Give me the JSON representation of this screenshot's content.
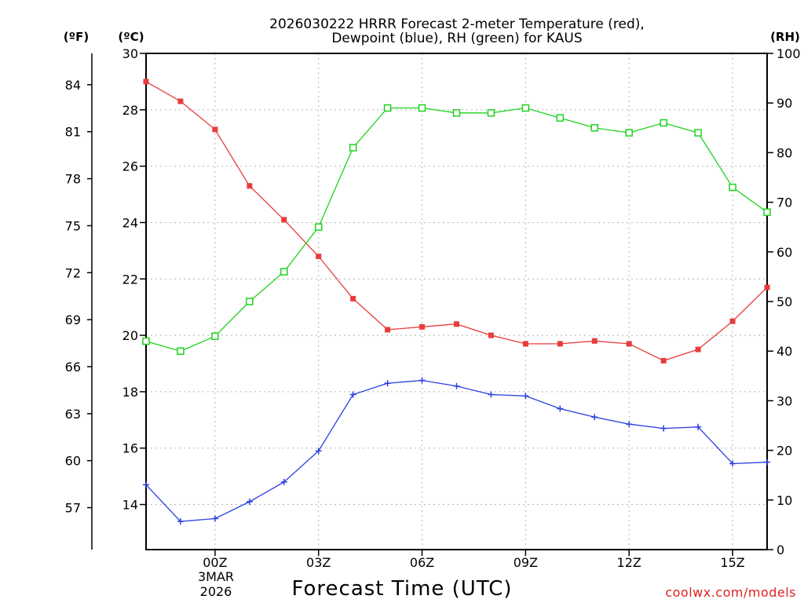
{
  "chart_data": {
    "type": "line",
    "title_line1": "2026030222 HRRR Forecast 2-meter Temperature (red),",
    "title_line2": "Dewpoint (blue), RH (green) for KAUS",
    "xlabel": "Forecast Time (UTC)",
    "credit": "coolwx.com/models",
    "unit_labels": {
      "fahrenheit": "(ºF)",
      "celsius": "(ºC)",
      "rh": "(RH)"
    },
    "date_label": [
      "3MAR",
      "2026"
    ],
    "x": [
      -2,
      -1,
      0,
      1,
      2,
      3,
      4,
      5,
      6,
      7,
      8,
      9,
      10,
      11,
      12,
      13,
      14,
      15,
      16
    ],
    "xlim": [
      -2,
      16
    ],
    "x_ticks": [
      {
        "x": 0,
        "label": "00Z"
      },
      {
        "x": 3,
        "label": "03Z"
      },
      {
        "x": 6,
        "label": "06Z"
      },
      {
        "x": 9,
        "label": "09Z"
      },
      {
        "x": 12,
        "label": "12Z"
      },
      {
        "x": 15,
        "label": "15Z"
      }
    ],
    "y_celsius": {
      "lim": [
        12.4,
        30
      ],
      "ticks": [
        14,
        16,
        18,
        20,
        22,
        24,
        26,
        28,
        30
      ]
    },
    "y_fahrenheit": {
      "ticks": [
        57,
        60,
        63,
        66,
        69,
        72,
        75,
        78,
        81,
        84
      ]
    },
    "y_rh": {
      "lim": [
        0,
        100
      ],
      "ticks": [
        0,
        10,
        20,
        30,
        40,
        50,
        60,
        70,
        80,
        90,
        100
      ]
    },
    "series": [
      {
        "name": "2-meter Temperature",
        "axis": "celsius",
        "color": "#e83c3c",
        "marker": "filled-square",
        "values": [
          29.0,
          28.3,
          27.3,
          25.3,
          24.1,
          22.8,
          21.3,
          20.2,
          20.3,
          20.4,
          20.0,
          19.7,
          19.7,
          19.8,
          19.7,
          19.1,
          19.5,
          20.5,
          21.7
        ]
      },
      {
        "name": "Dewpoint",
        "axis": "celsius",
        "color": "#2a3fe0",
        "marker": "plus",
        "values": [
          14.7,
          13.4,
          13.5,
          14.1,
          14.8,
          15.9,
          17.9,
          18.3,
          18.4,
          18.2,
          17.9,
          17.85,
          17.4,
          17.1,
          16.85,
          16.7,
          16.75,
          15.45,
          15.5
        ]
      },
      {
        "name": "Relative Humidity",
        "axis": "rh",
        "color": "#1ed21e",
        "marker": "open-square",
        "values": [
          42,
          40,
          43,
          50,
          56,
          65,
          81,
          89,
          89,
          88,
          88,
          89,
          87,
          85,
          84,
          86,
          84,
          73,
          68
        ]
      }
    ]
  }
}
